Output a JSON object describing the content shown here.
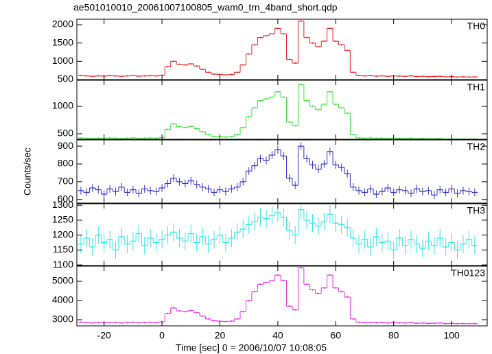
{
  "title": "ae501010010_20061007100805_wam0_trn_4band_short.qdp",
  "xlabel": "Time [sec] 0 = 2006/10/07 10:08:05",
  "ylabel": "Counts/sec",
  "chart_data": [
    {
      "type": "step",
      "label": "TH0",
      "color": "#e82020",
      "error": 20,
      "xlim": [
        -29.4,
        112.3
      ],
      "xticks": [
        -20,
        0,
        20,
        40,
        60,
        80,
        100
      ],
      "ylim": [
        500,
        2150
      ],
      "yticks": [
        500,
        1000,
        1500,
        2000
      ],
      "x": [
        -28,
        -26,
        -24,
        -22,
        -20,
        -18,
        -16,
        -14,
        -12,
        -10,
        -8,
        -6,
        -4,
        -2,
        0,
        2,
        4,
        6,
        8,
        10,
        12,
        14,
        16,
        18,
        20,
        22,
        24,
        26,
        28,
        30,
        32,
        34,
        36,
        38,
        40,
        42,
        44,
        46,
        48,
        50,
        52,
        54,
        56,
        58,
        60,
        62,
        64,
        66,
        68,
        70,
        72,
        74,
        76,
        78,
        80,
        82,
        84,
        86,
        88,
        90,
        92,
        94,
        96,
        98,
        100,
        102,
        104,
        106,
        108
      ],
      "values": [
        610,
        600,
        590,
        600,
        595,
        605,
        600,
        590,
        600,
        610,
        595,
        600,
        605,
        600,
        620,
        850,
        1000,
        920,
        900,
        930,
        870,
        780,
        700,
        650,
        640,
        630,
        640,
        700,
        900,
        1200,
        1450,
        1650,
        1700,
        1750,
        1900,
        1750,
        1050,
        950,
        2100,
        1650,
        1500,
        1400,
        1550,
        1900,
        1550,
        1450,
        1300,
        700,
        610,
        600,
        605,
        595,
        600,
        590,
        600,
        595,
        590,
        600,
        585,
        590,
        580,
        585,
        590,
        575,
        580,
        570,
        575,
        570,
        572
      ]
    },
    {
      "type": "step",
      "label": "TH1",
      "color": "#33e833",
      "error": 15,
      "xlim": [
        -29.4,
        112.3
      ],
      "xticks": [
        -20,
        0,
        20,
        40,
        60,
        80,
        100
      ],
      "ylim": [
        400,
        1475
      ],
      "yticks": [
        500,
        1000
      ],
      "x": [
        -28,
        -26,
        -24,
        -22,
        -20,
        -18,
        -16,
        -14,
        -12,
        -10,
        -8,
        -6,
        -4,
        -2,
        0,
        2,
        4,
        6,
        8,
        10,
        12,
        14,
        16,
        18,
        20,
        22,
        24,
        26,
        28,
        30,
        32,
        34,
        36,
        38,
        40,
        42,
        44,
        46,
        48,
        50,
        52,
        54,
        56,
        58,
        60,
        62,
        64,
        66,
        68,
        70,
        72,
        74,
        76,
        78,
        80,
        82,
        84,
        86,
        88,
        90,
        92,
        94,
        96,
        98,
        100,
        102,
        104,
        106,
        108
      ],
      "values": [
        425,
        420,
        415,
        420,
        418,
        423,
        420,
        415,
        420,
        425,
        418,
        420,
        423,
        420,
        433,
        582,
        680,
        628,
        615,
        635,
        596,
        537,
        485,
        453,
        446,
        440,
        446,
        485,
        615,
        810,
        973,
        1103,
        1135,
        1168,
        1265,
        1168,
        713,
        648,
        1395,
        1103,
        1005,
        940,
        1038,
        1265,
        1038,
        973,
        875,
        485,
        425,
        420,
        423,
        417,
        420,
        414,
        420,
        417,
        414,
        420,
        410,
        414,
        408,
        410,
        414,
        404,
        408,
        402,
        404,
        402,
        403
      ]
    },
    {
      "type": "step",
      "label": "TH2",
      "color": "#3030d0",
      "error": 22,
      "xlim": [
        -29.4,
        112.3
      ],
      "xticks": [
        -20,
        0,
        20,
        40,
        60,
        80,
        100
      ],
      "ylim": [
        580,
        935
      ],
      "yticks": [
        600,
        700,
        800,
        900
      ],
      "x": [
        -28,
        -26,
        -24,
        -22,
        -20,
        -18,
        -16,
        -14,
        -12,
        -10,
        -8,
        -6,
        -4,
        -2,
        0,
        2,
        4,
        6,
        8,
        10,
        12,
        14,
        16,
        18,
        20,
        22,
        24,
        26,
        28,
        30,
        32,
        34,
        36,
        38,
        40,
        42,
        44,
        46,
        48,
        50,
        52,
        54,
        56,
        58,
        60,
        62,
        64,
        66,
        68,
        70,
        72,
        74,
        76,
        78,
        80,
        82,
        84,
        86,
        88,
        90,
        92,
        94,
        96,
        98,
        100,
        102,
        104,
        106,
        108
      ],
      "values": [
        650,
        640,
        665,
        655,
        630,
        660,
        645,
        670,
        640,
        655,
        635,
        660,
        650,
        645,
        665,
        690,
        720,
        700,
        690,
        705,
        685,
        670,
        660,
        640,
        655,
        645,
        660,
        670,
        700,
        760,
        790,
        830,
        820,
        850,
        880,
        845,
        720,
        680,
        900,
        830,
        795,
        770,
        800,
        870,
        795,
        780,
        745,
        670,
        650,
        640,
        660,
        630,
        645,
        665,
        640,
        655,
        650,
        635,
        660,
        645,
        650,
        625,
        655,
        640,
        660,
        635,
        650,
        645,
        640
      ]
    },
    {
      "type": "step",
      "label": "TH3",
      "color": "#30e8e8",
      "error": 30,
      "xlim": [
        -29.4,
        112.3
      ],
      "xticks": [
        -20,
        0,
        20,
        40,
        60,
        80,
        100
      ],
      "ylim": [
        1098,
        1305
      ],
      "yticks": [
        1100,
        1150,
        1200,
        1250,
        1300
      ],
      "x": [
        -28,
        -26,
        -24,
        -22,
        -20,
        -18,
        -16,
        -14,
        -12,
        -10,
        -8,
        -6,
        -4,
        -2,
        0,
        2,
        4,
        6,
        8,
        10,
        12,
        14,
        16,
        18,
        20,
        22,
        24,
        26,
        28,
        30,
        32,
        34,
        36,
        38,
        40,
        42,
        44,
        46,
        48,
        50,
        52,
        54,
        56,
        58,
        60,
        62,
        64,
        66,
        68,
        70,
        72,
        74,
        76,
        78,
        80,
        82,
        84,
        86,
        88,
        90,
        92,
        94,
        96,
        98,
        100,
        102,
        104,
        106,
        108
      ],
      "values": [
        1170,
        1190,
        1160,
        1200,
        1175,
        1185,
        1150,
        1195,
        1170,
        1180,
        1205,
        1165,
        1190,
        1175,
        1185,
        1200,
        1210,
        1190,
        1180,
        1205,
        1175,
        1195,
        1170,
        1185,
        1200,
        1175,
        1190,
        1210,
        1220,
        1235,
        1245,
        1260,
        1255,
        1265,
        1275,
        1260,
        1215,
        1200,
        1285,
        1250,
        1240,
        1230,
        1245,
        1270,
        1240,
        1235,
        1225,
        1190,
        1170,
        1185,
        1160,
        1195,
        1175,
        1180,
        1150,
        1190,
        1165,
        1185,
        1170,
        1155,
        1180,
        1165,
        1190,
        1160,
        1175,
        1150,
        1170,
        1185,
        1165
      ]
    },
    {
      "type": "step",
      "label": "TH0123",
      "color": "#e830e8",
      "error": 45,
      "xlim": [
        -29.4,
        112.3
      ],
      "xticks": [
        -20,
        0,
        20,
        40,
        60,
        80,
        100
      ],
      "ylim": [
        2680,
        5785
      ],
      "yticks": [
        3000,
        4000,
        5000
      ],
      "x": [
        -28,
        -26,
        -24,
        -22,
        -20,
        -18,
        -16,
        -14,
        -12,
        -10,
        -8,
        -6,
        -4,
        -2,
        0,
        2,
        4,
        6,
        8,
        10,
        12,
        14,
        16,
        18,
        20,
        22,
        24,
        26,
        28,
        30,
        32,
        34,
        36,
        38,
        40,
        42,
        44,
        46,
        48,
        50,
        52,
        54,
        56,
        58,
        60,
        62,
        64,
        66,
        68,
        70,
        72,
        74,
        76,
        78,
        80,
        82,
        84,
        86,
        88,
        90,
        92,
        94,
        96,
        98,
        100,
        102,
        104,
        106,
        108
      ],
      "values": [
        2870,
        2850,
        2830,
        2850,
        2840,
        2860,
        2850,
        2830,
        2850,
        2870,
        2840,
        2850,
        2860,
        2850,
        2890,
        3325,
        3610,
        3458,
        3420,
        3477,
        3363,
        3192,
        3040,
        2945,
        2926,
        2907,
        2926,
        3040,
        3420,
        3990,
        4465,
        4845,
        4940,
        5035,
        5320,
        5035,
        3705,
        3515,
        5700,
        4845,
        4560,
        4370,
        4655,
        5320,
        4655,
        4465,
        4180,
        3040,
        2870,
        2850,
        2860,
        2840,
        2850,
        2830,
        2850,
        2840,
        2830,
        2850,
        2815,
        2830,
        2810,
        2815,
        2830,
        2800,
        2810,
        2795,
        2800,
        2795,
        2798
      ]
    }
  ]
}
